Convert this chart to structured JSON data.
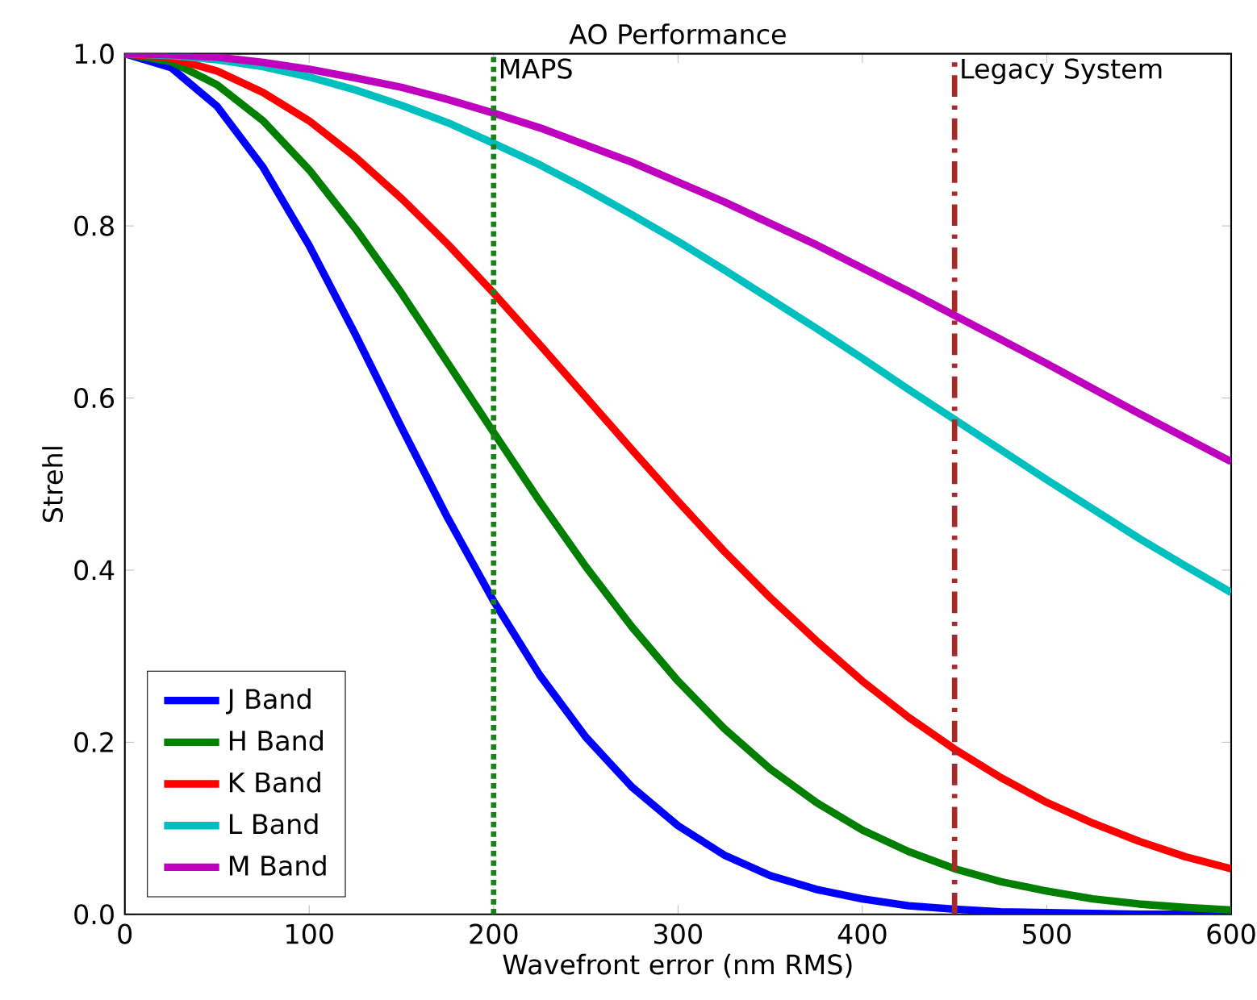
{
  "chart_data": {
    "type": "line",
    "title": "AO Performance",
    "xlabel": "Wavefront error (nm RMS)",
    "ylabel": "Strehl",
    "x": [
      0,
      25,
      50,
      75,
      100,
      125,
      150,
      175,
      200,
      225,
      250,
      275,
      300,
      325,
      350,
      375,
      400,
      425,
      450,
      475,
      500,
      525,
      550,
      575,
      600
    ],
    "series": [
      {
        "name": "J Band",
        "color": "#0000ff",
        "values": [
          1,
          0.984,
          0.939,
          0.868,
          0.777,
          0.674,
          0.566,
          0.461,
          0.364,
          0.278,
          0.206,
          0.148,
          0.103,
          0.069,
          0.045,
          0.029,
          0.018,
          0.01,
          0.006,
          0.003,
          0.002,
          0.001,
          0.0,
          0.0,
          0.0
        ]
      },
      {
        "name": "H Band",
        "color": "#007f00",
        "values": [
          1,
          0.991,
          0.964,
          0.922,
          0.865,
          0.797,
          0.722,
          0.641,
          0.56,
          0.48,
          0.404,
          0.334,
          0.271,
          0.216,
          0.169,
          0.13,
          0.098,
          0.073,
          0.053,
          0.038,
          0.027,
          0.018,
          0.012,
          0.008,
          0.005
        ]
      },
      {
        "name": "K Band",
        "color": "#ff0000",
        "values": [
          1,
          0.995,
          0.98,
          0.955,
          0.922,
          0.88,
          0.832,
          0.779,
          0.722,
          0.662,
          0.601,
          0.54,
          0.48,
          0.422,
          0.368,
          0.318,
          0.271,
          0.229,
          0.192,
          0.159,
          0.13,
          0.106,
          0.085,
          0.067,
          0.053
        ]
      },
      {
        "name": "L Band",
        "color": "#00bfbf",
        "values": [
          1,
          0.998,
          0.993,
          0.985,
          0.973,
          0.958,
          0.94,
          0.92,
          0.896,
          0.871,
          0.843,
          0.813,
          0.782,
          0.749,
          0.715,
          0.681,
          0.646,
          0.61,
          0.575,
          0.54,
          0.505,
          0.471,
          0.437,
          0.405,
          0.374
        ]
      },
      {
        "name": "M Band",
        "color": "#bf00bf",
        "values": [
          1,
          0.999,
          0.996,
          0.99,
          0.982,
          0.972,
          0.961,
          0.947,
          0.931,
          0.914,
          0.894,
          0.874,
          0.851,
          0.828,
          0.803,
          0.778,
          0.751,
          0.724,
          0.696,
          0.668,
          0.64,
          0.611,
          0.582,
          0.554,
          0.526
        ]
      }
    ],
    "xlim": [
      0,
      600
    ],
    "xticks": [
      0,
      100,
      200,
      300,
      400,
      500,
      600
    ],
    "ylim": [
      0,
      1
    ],
    "yticks": [
      {
        "value": 0,
        "label": "0.0"
      },
      {
        "value": 0.2,
        "label": "0.2"
      },
      {
        "value": 0.4,
        "label": "0.4"
      },
      {
        "value": 0.6,
        "label": "0.6"
      },
      {
        "value": 0.8,
        "label": "0.8"
      },
      {
        "value": 1,
        "label": "1.0"
      }
    ],
    "ref_lines": [
      {
        "axis": "x",
        "value": 200,
        "label": "MAPS",
        "color": "#1a801a",
        "line_style": "dotted"
      },
      {
        "axis": "x",
        "value": 450,
        "label": "Legacy System",
        "color": "#a52a2a",
        "line_style": "dashed"
      }
    ],
    "legend": "bottom left",
    "grid": false,
    "line_style": "solid"
  }
}
